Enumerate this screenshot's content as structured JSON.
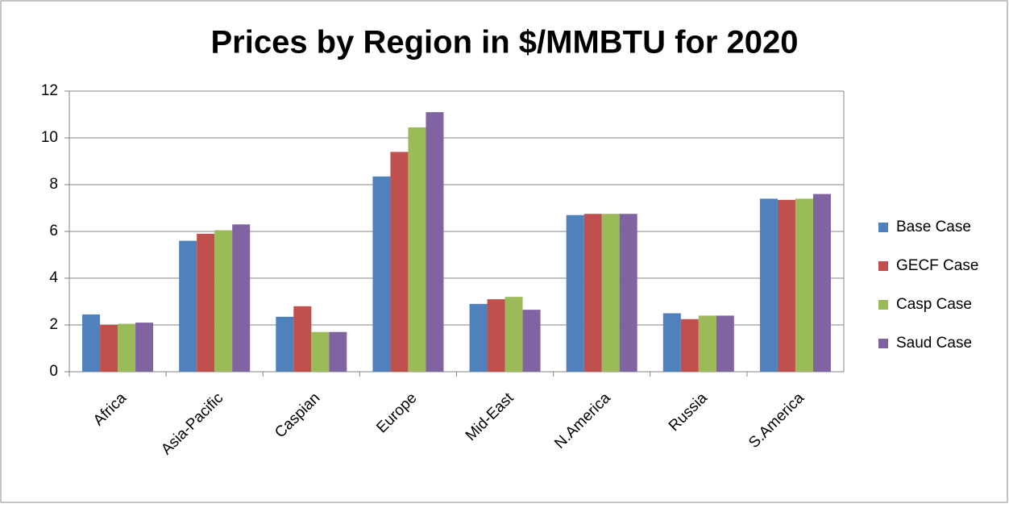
{
  "chart_data": {
    "type": "bar",
    "title": "Prices by Region in $/MMBTU for 2020",
    "categories": [
      "Africa",
      "Asia-Pacific",
      "Caspian",
      "Europe",
      "Mid-East",
      "N.America",
      "Russia",
      "S.America"
    ],
    "series": [
      {
        "name": "Base Case",
        "color": "#4f81bd",
        "values": [
          2.45,
          5.6,
          2.35,
          8.35,
          2.9,
          6.7,
          2.5,
          7.4
        ]
      },
      {
        "name": "GECF Case",
        "color": "#c0504d",
        "values": [
          2.0,
          5.9,
          2.8,
          9.4,
          3.1,
          6.75,
          2.25,
          7.35
        ]
      },
      {
        "name": "Casp Case",
        "color": "#9bbb59",
        "values": [
          2.05,
          6.05,
          1.7,
          10.45,
          3.2,
          6.75,
          2.4,
          7.4
        ]
      },
      {
        "name": "Saud Case",
        "color": "#8064a2",
        "values": [
          2.1,
          6.3,
          1.7,
          11.1,
          2.65,
          6.75,
          2.4,
          7.6
        ]
      }
    ],
    "ylim": [
      0,
      12
    ],
    "yticks": [
      0,
      2,
      4,
      6,
      8,
      10,
      12
    ],
    "grid": true,
    "legend": "right"
  }
}
